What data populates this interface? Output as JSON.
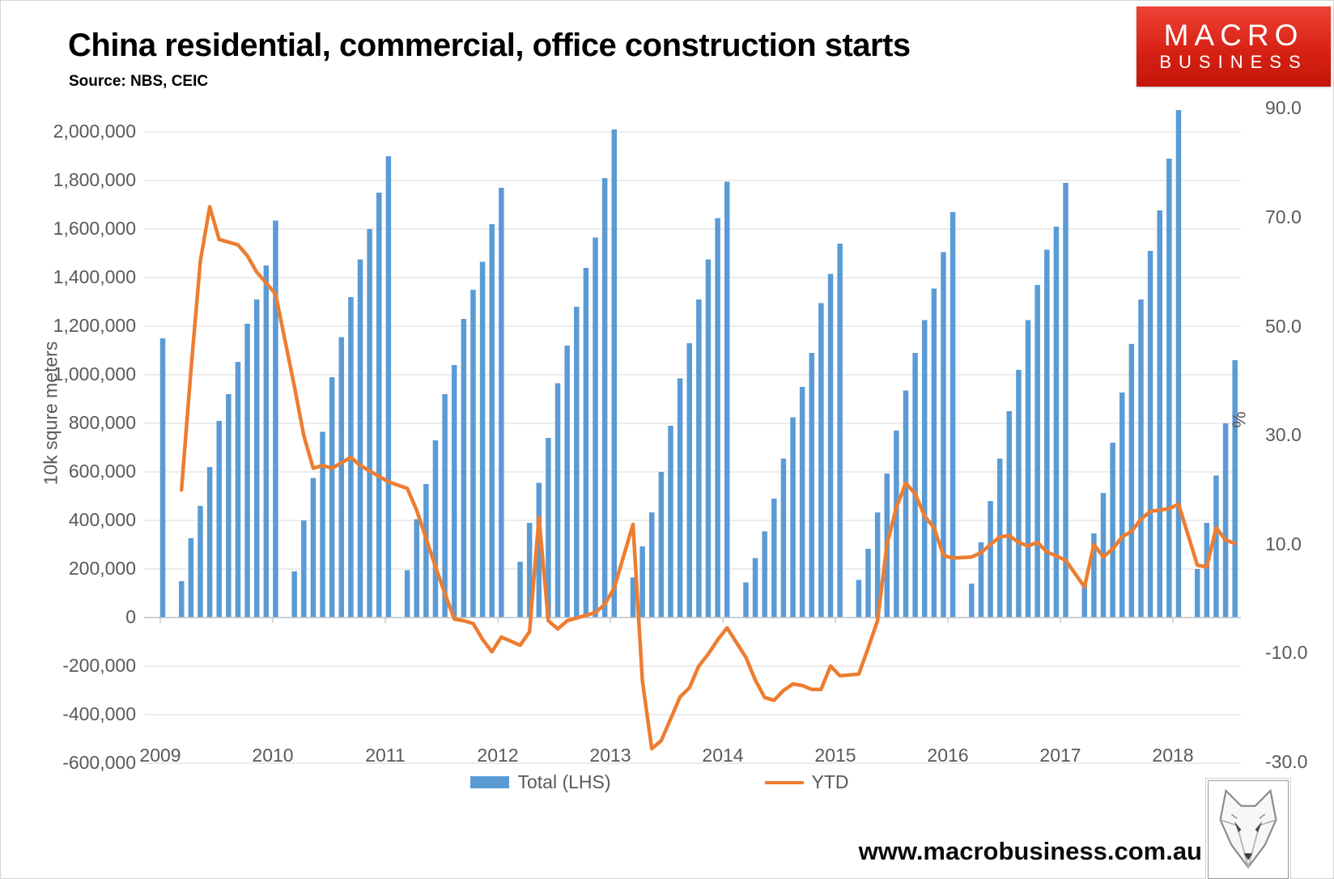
{
  "header": {
    "title": "China residential, commercial, office construction starts",
    "source": "Source: NBS, CEIC"
  },
  "brand": {
    "line1": "MACRO",
    "line2": "BUSINESS",
    "bg": "#d72215"
  },
  "legend": {
    "total_label": "Total (LHS)",
    "ytd_label": "YTD"
  },
  "footer": {
    "url": "www.macrobusiness.com.au",
    "logo": "fox-head-icon"
  },
  "chart_data": {
    "type": "bar+line",
    "title": "China residential, commercial, office construction starts",
    "x_years": [
      "2009",
      "2010",
      "2011",
      "2012",
      "2013",
      "2014",
      "2015",
      "2016",
      "2017",
      "2018"
    ],
    "y_left": {
      "axis_label": "10k squre meters",
      "tick_values": [
        2000000,
        1800000,
        1600000,
        1400000,
        1200000,
        1000000,
        800000,
        600000,
        400000,
        200000,
        0,
        -200000,
        -400000,
        -600000
      ],
      "tick_labels": [
        "2,000,000",
        "1,800,000",
        "1,600,000",
        "1,400,000",
        "1,200,000",
        "1,000,000",
        "800,000",
        "600,000",
        "400,000",
        "200,000",
        "0",
        "-200,000",
        "-400,000",
        "-600,000"
      ],
      "grid": true
    },
    "y_right": {
      "axis_label": "%",
      "tick_values": [
        90,
        70,
        50,
        30,
        10,
        -10,
        -30
      ],
      "tick_labels": [
        "90.0",
        "70.0",
        "50.0",
        "30.0",
        "10.0",
        "-10.0",
        "-30.0"
      ]
    },
    "series": [
      {
        "name": "Total (LHS)",
        "type": "bar",
        "axis": "left",
        "color": "#5B9BD5",
        "months_per_year": "Feb-Dec (Jan omitted); 2008 is Dec only; 2018 is Feb-Jun",
        "data": {
          "2008-12": 1150000,
          "2009": [
            150000,
            327000,
            460000,
            620000,
            810000,
            920000,
            1053000,
            1210000,
            1310000,
            1450000,
            1635000
          ],
          "2010": [
            190000,
            400000,
            575000,
            765000,
            990000,
            1155000,
            1320000,
            1475000,
            1600000,
            1750000,
            1900000
          ],
          "2011": [
            195000,
            405000,
            550000,
            730000,
            920000,
            1040000,
            1230000,
            1350000,
            1465000,
            1620000,
            1770000
          ],
          "2012": [
            230000,
            390000,
            555000,
            740000,
            965000,
            1120000,
            1280000,
            1440000,
            1565000,
            1810000,
            2010000
          ],
          "2013": [
            165000,
            293000,
            433000,
            600000,
            790000,
            985000,
            1130000,
            1310000,
            1475000,
            1645000,
            1795000
          ],
          "2014": [
            145000,
            245000,
            355000,
            490000,
            655000,
            825000,
            950000,
            1090000,
            1295000,
            1415000,
            1540000
          ],
          "2015": [
            155000,
            283000,
            433000,
            593000,
            770000,
            935000,
            1090000,
            1225000,
            1355000,
            1505000,
            1670000
          ],
          "2016": [
            140000,
            310000,
            480000,
            655000,
            850000,
            1020000,
            1225000,
            1370000,
            1515000,
            1610000,
            1790000
          ],
          "2017": [
            140000,
            347000,
            513000,
            720000,
            927000,
            1127000,
            1310000,
            1510000,
            1677000,
            1890000,
            2090000
          ],
          "2018": [
            200000,
            390000,
            585000,
            800000,
            1060000
          ]
        }
      },
      {
        "name": "YTD",
        "type": "line",
        "axis": "right",
        "color": "#ED7D31",
        "data": {
          "2009": [
            20,
            42,
            62,
            72,
            66,
            65.5,
            65,
            63,
            60,
            58,
            56
          ],
          "2010": [
            39,
            30,
            24,
            24.5,
            24,
            25,
            26,
            24.5,
            23.5,
            22.5,
            21.5
          ],
          "2011": [
            20.3,
            16.3,
            11.1,
            5.9,
            1.0,
            -3.7,
            -4.0,
            -4.5,
            -7.4,
            -9.7,
            -7.0
          ],
          "2012": [
            -8.5,
            -6.0,
            15.0,
            -4.0,
            -5.5,
            -4.0,
            -3.5,
            -3.0,
            -2.5,
            -1.0,
            2.0
          ],
          "2013": [
            13.7,
            -15.0,
            -27.5,
            -26.0,
            -22.0,
            -18.0,
            -16.3,
            -12.3,
            -10.1,
            -7.5,
            -5.3
          ],
          "2014": [
            -10.7,
            -14.9,
            -18.1,
            -18.6,
            -16.8,
            -15.6,
            -15.9,
            -16.6,
            -16.6,
            -12.3,
            -14.1
          ],
          "2015": [
            -13.8,
            -9.0,
            -4.0,
            10.0,
            16.8,
            21.3,
            19.3,
            15.2,
            13.1,
            8.0,
            7.5
          ],
          "2016": [
            7.7,
            8.5,
            10.0,
            11.4,
            11.6,
            10.4,
            9.7,
            10.4,
            8.6,
            7.9,
            7.1
          ],
          "2017": [
            2.2,
            10.0,
            7.7,
            9.2,
            11.4,
            12.4,
            14.6,
            16.1,
            16.3,
            16.6,
            17.4
          ],
          "2018": [
            6.2,
            5.9,
            13.1,
            10.8,
            10.2
          ]
        }
      }
    ]
  }
}
